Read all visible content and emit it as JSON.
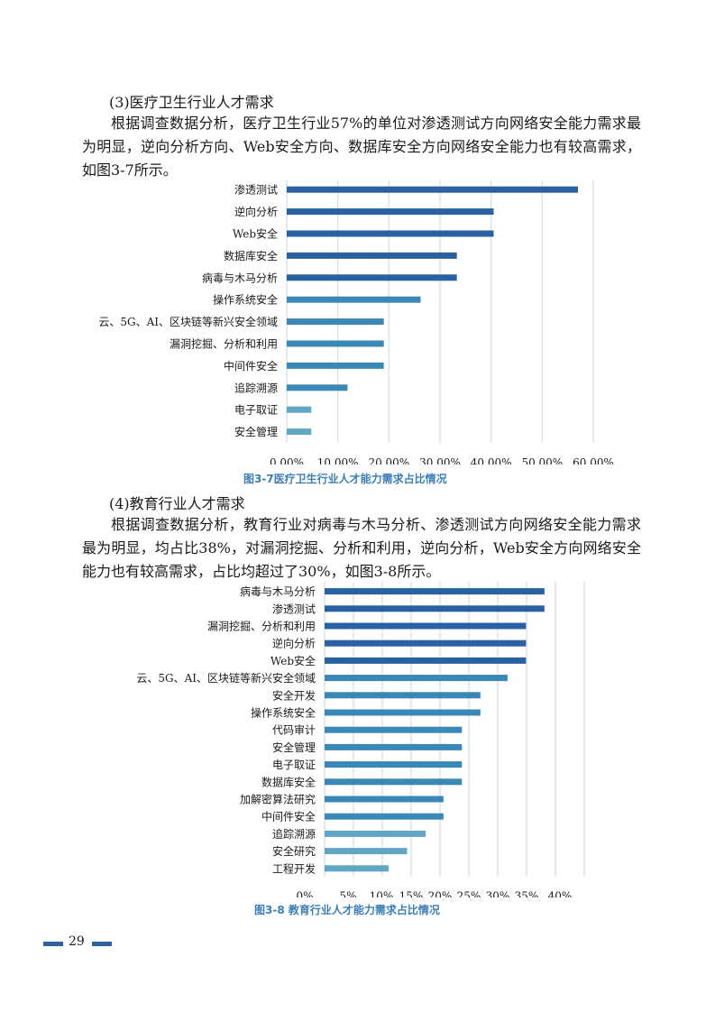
{
  "section3": {
    "heading": "(3)医疗卫生行业人才需求",
    "paragraph": "根据调查数据分析，医疗卫生行业57%的单位对渗透测试方向网络安全能力需求最为明显，逆向分析方向、Web安全方向、数据库安全方向网络安全能力也有较高需求，如图3-7所示。",
    "caption": "图3-7医疗卫生行业人才能力需求占比情况"
  },
  "section4": {
    "heading": "(4)教育行业人才需求",
    "paragraph": "根据调查数据分析，教育行业对病毒与木马分析、渗透测试方向网络安全能力需求最为明显，均占比38%，对漏洞挖掘、分析和利用，逆向分析，Web安全方向网络安全能力也有较高需求，占比均超过了30%，如图3-8所示。",
    "caption": "图3-8 教育行业人才能力需求占比情况"
  },
  "colors": {
    "dark": "#2a61a3",
    "mid": "#3a88b5",
    "light": "#62a6c6",
    "grid": "#c9d9e3",
    "caption": "#3a7fb8"
  },
  "page_number": "29",
  "chart_data": [
    {
      "type": "bar",
      "orientation": "horizontal",
      "categories": [
        "渗透测试",
        "逆向分析",
        "Web安全",
        "数据库安全",
        "病毒与木马分析",
        "操作系统安全",
        "云、5G、AI、区块链等新兴安全领域",
        "漏洞挖掘、分析和利用",
        "中间件安全",
        "追踪溯源",
        "电子取证",
        "安全管理"
      ],
      "values": [
        57.0,
        40.5,
        40.5,
        33.3,
        33.3,
        26.2,
        19.0,
        19.0,
        19.0,
        11.9,
        4.8,
        4.8
      ],
      "xlim": [
        0,
        60
      ],
      "ticks": [
        0,
        10,
        20,
        30,
        40,
        50,
        60
      ],
      "tick_labels": [
        "0.00%",
        "10.00%",
        "20.00%",
        "30.00%",
        "40.00%",
        "50.00%",
        "60.00%"
      ],
      "grid": true,
      "legend": "none"
    },
    {
      "type": "bar",
      "orientation": "horizontal",
      "categories": [
        "病毒与木马分析",
        "渗透测试",
        "漏洞挖掘、分析和利用",
        "逆向分析",
        "Web安全",
        "云、5G、AI、区块链等新兴安全领域",
        "安全开发",
        "操作系统安全",
        "代码审计",
        "安全管理",
        "电子取证",
        "数据库安全",
        "加解密算法研究",
        "中间件安全",
        "追踪溯源",
        "安全研究",
        "工程开发"
      ],
      "values": [
        38.1,
        38.1,
        34.9,
        34.9,
        34.9,
        31.7,
        27.0,
        27.0,
        23.8,
        23.8,
        23.8,
        23.8,
        20.6,
        20.6,
        17.5,
        14.3,
        11.1
      ],
      "xlim": [
        0,
        45
      ],
      "ticks": [
        0,
        5,
        10,
        15,
        20,
        25,
        30,
        35,
        40,
        45
      ],
      "tick_labels": [
        "0%",
        "5%",
        "10%",
        "15%",
        "20%",
        "25%",
        "30%",
        "35%",
        "40%",
        ""
      ],
      "grid": true,
      "legend": "none"
    }
  ]
}
